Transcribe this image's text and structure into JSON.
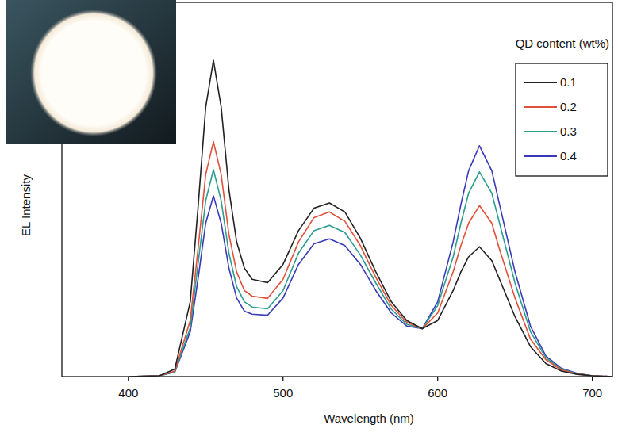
{
  "chart_data": {
    "type": "line",
    "x_label": "Wavelength (nm)",
    "y_label": "EL Intensity",
    "legend_title": "QD content (wt%)",
    "legend": "upper right",
    "tick_labels": "x",
    "xlim": [
      357,
      713
    ],
    "xticks": [
      400,
      500,
      600,
      700
    ],
    "ylim": [
      0,
      1
    ],
    "x": [
      400,
      420,
      430,
      440,
      445,
      450,
      455,
      460,
      465,
      470,
      475,
      480,
      490,
      500,
      510,
      520,
      530,
      540,
      550,
      560,
      570,
      580,
      590,
      600,
      610,
      615,
      620,
      627,
      635,
      640,
      650,
      660,
      670,
      680,
      690,
      700,
      713
    ],
    "series": [
      {
        "name": "0.1",
        "color": "#222222",
        "values": [
          0,
          0.002,
          0.02,
          0.2,
          0.45,
          0.72,
          0.845,
          0.72,
          0.5,
          0.36,
          0.29,
          0.26,
          0.251,
          0.3,
          0.39,
          0.45,
          0.464,
          0.44,
          0.37,
          0.28,
          0.2,
          0.15,
          0.128,
          0.15,
          0.23,
          0.28,
          0.32,
          0.347,
          0.31,
          0.26,
          0.16,
          0.08,
          0.035,
          0.015,
          0.006,
          0.002,
          0
        ]
      },
      {
        "name": "0.2",
        "color": "#e0503a",
        "values": [
          0,
          0.002,
          0.015,
          0.15,
          0.34,
          0.54,
          0.628,
          0.54,
          0.38,
          0.28,
          0.23,
          0.215,
          0.209,
          0.26,
          0.36,
          0.425,
          0.44,
          0.415,
          0.35,
          0.265,
          0.19,
          0.145,
          0.128,
          0.17,
          0.28,
          0.35,
          0.41,
          0.457,
          0.41,
          0.34,
          0.21,
          0.1,
          0.045,
          0.018,
          0.007,
          0.002,
          0
        ]
      },
      {
        "name": "0.3",
        "color": "#2a9d8f",
        "values": [
          0,
          0.002,
          0.013,
          0.13,
          0.3,
          0.47,
          0.553,
          0.47,
          0.33,
          0.24,
          0.2,
          0.186,
          0.181,
          0.23,
          0.33,
          0.39,
          0.404,
          0.385,
          0.325,
          0.25,
          0.18,
          0.14,
          0.128,
          0.19,
          0.32,
          0.41,
          0.49,
          0.547,
          0.49,
          0.41,
          0.25,
          0.12,
          0.05,
          0.02,
          0.008,
          0.002,
          0
        ]
      },
      {
        "name": "0.4",
        "color": "#3a3ab8",
        "values": [
          0,
          0.002,
          0.012,
          0.12,
          0.26,
          0.41,
          0.483,
          0.41,
          0.29,
          0.21,
          0.175,
          0.167,
          0.164,
          0.21,
          0.3,
          0.355,
          0.368,
          0.35,
          0.3,
          0.23,
          0.17,
          0.135,
          0.128,
          0.2,
          0.36,
          0.46,
          0.55,
          0.617,
          0.55,
          0.46,
          0.28,
          0.135,
          0.055,
          0.022,
          0.009,
          0.002,
          0
        ]
      }
    ]
  }
}
